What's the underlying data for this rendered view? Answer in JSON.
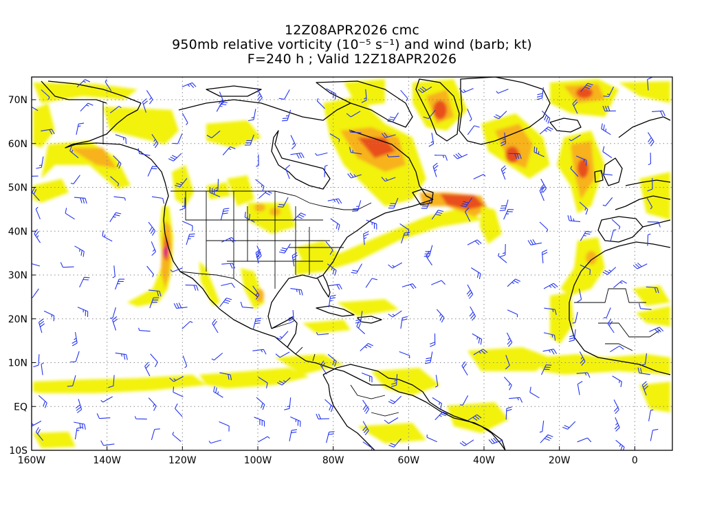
{
  "title": {
    "line1": "12Z08APR2026 cmc",
    "line2": "950mb relative vorticity (10⁻⁵ s⁻¹) and wind (barb; kt)",
    "line3": "F=240 h ; Valid 12Z18APR2026"
  },
  "axes": {
    "lon_ticks": [
      "160W",
      "140W",
      "120W",
      "100W",
      "80W",
      "60W",
      "40W",
      "20W",
      "0"
    ],
    "lat_ticks": [
      "70N",
      "60N",
      "50N",
      "40N",
      "30N",
      "20N",
      "10N",
      "EQ",
      "10S"
    ]
  },
  "colors": {
    "yellow": "#f2f20a",
    "orange": "#f7b21a",
    "red": "#e8501e",
    "magenta": "#e0187a",
    "barb": "#2233ee",
    "coast": "#000000",
    "grid": "#888888"
  }
}
